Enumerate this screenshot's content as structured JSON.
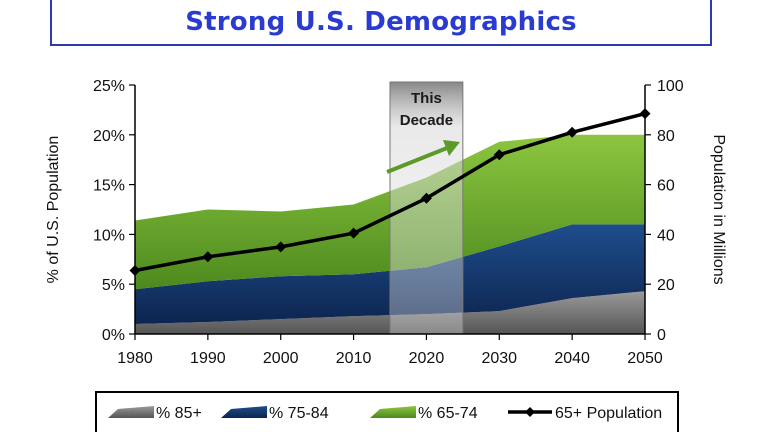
{
  "title": "Strong U.S. Demographics",
  "chart_data": {
    "type": "area",
    "title": "Strong U.S. Demographics",
    "x": [
      1980,
      1990,
      2000,
      2010,
      2020,
      2030,
      2040,
      2050
    ],
    "x_tick_labels": [
      "1980",
      "1990",
      "2000",
      "2010",
      "2020",
      "2030",
      "2040",
      "2050"
    ],
    "ylabel_left": "% of U.S. Population",
    "ylabel_right": "Population in Millions",
    "ylim_left": [
      0,
      25
    ],
    "ylim_right": [
      0,
      100
    ],
    "y_ticks_left": [
      "0%",
      "5%",
      "10%",
      "15%",
      "20%",
      "25%"
    ],
    "y_ticks_right": [
      "0",
      "20",
      "40",
      "60",
      "80",
      "100"
    ],
    "stacked": true,
    "series": [
      {
        "name": "% 85+",
        "type": "area",
        "axis": "left",
        "color": "#8a8a8a",
        "values": [
          1.0,
          1.2,
          1.5,
          1.8,
          2.0,
          2.3,
          3.6,
          4.3
        ]
      },
      {
        "name": "% 75-84",
        "type": "area",
        "axis": "left",
        "color": "#163a70",
        "values": [
          3.5,
          4.1,
          4.3,
          4.2,
          4.7,
          6.5,
          7.4,
          6.7
        ]
      },
      {
        "name": "% 65-74",
        "type": "area",
        "axis": "left",
        "color": "#6aa22c",
        "values": [
          6.9,
          7.2,
          6.5,
          7.0,
          9.0,
          10.5,
          9.0,
          9.0
        ]
      },
      {
        "name": "65+ Population",
        "type": "line",
        "axis": "right",
        "color": "#000000",
        "values": [
          25.5,
          31.0,
          35.0,
          40.5,
          54.5,
          72.0,
          81.0,
          88.5
        ]
      }
    ],
    "annotation": {
      "label_line1": "This",
      "label_line2": "Decade",
      "x_range": [
        2015,
        2025
      ]
    },
    "legend_position": "bottom",
    "grid": false
  }
}
